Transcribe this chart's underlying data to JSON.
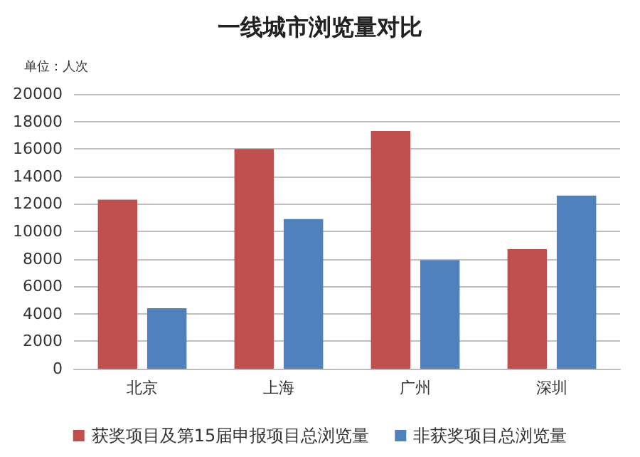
{
  "chart_data": {
    "type": "bar",
    "title": "一线城市浏览量对比",
    "ylabel": "单位：人次",
    "categories": [
      "北京",
      "上海",
      "广州",
      "深圳"
    ],
    "series": [
      {
        "name": "获奖项目及第15届申报项目总浏览量",
        "color": "#c0504d",
        "values": [
          12300,
          16000,
          17300,
          8700
        ]
      },
      {
        "name": "非获奖项目总浏览量",
        "color": "#4f81bd",
        "values": [
          4400,
          10900,
          7900,
          12600
        ]
      }
    ],
    "ylim": [
      0,
      20000
    ],
    "yticks": [
      0,
      2000,
      4000,
      6000,
      8000,
      10000,
      12000,
      14000,
      16000,
      18000,
      20000
    ],
    "grid": "y",
    "legend": "bottom"
  }
}
